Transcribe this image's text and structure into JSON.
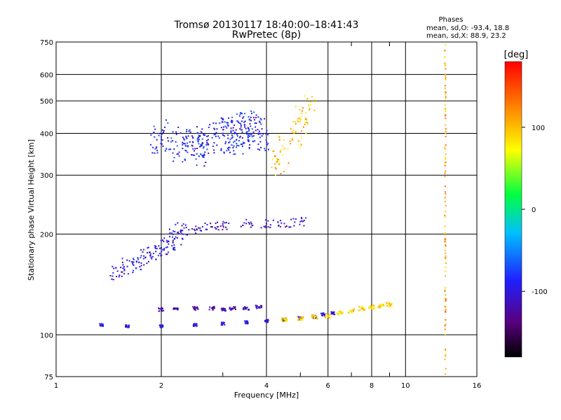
{
  "chart_data": {
    "type": "scatter",
    "title": "Tromsø 20130117 18:40:00–18:41:43",
    "subtitle": "RwPretec (8p)",
    "xlabel": "Frequency [MHz]",
    "ylabel": "Stationary phase Virtual Height [km]",
    "x_scale": "log",
    "y_scale": "log",
    "xlim": [
      1,
      16
    ],
    "ylim": [
      75,
      750
    ],
    "x_ticks": [
      1,
      2,
      4,
      6,
      8,
      10,
      16
    ],
    "x_minor_ticks": [
      7,
      9
    ],
    "y_ticks": [
      75,
      100,
      200,
      300,
      400,
      500,
      600,
      750
    ],
    "grid": true,
    "stats": {
      "heading": "Phases",
      "line1": "mean, sd,O:  -93.4, 18.8",
      "line2": "mean, sd,X:  88.9, 23.2"
    },
    "colorbar": {
      "label": "[deg]",
      "range": [
        -180,
        180
      ],
      "ticks": [
        100,
        0,
        -100
      ],
      "tick_labels": [
        "100",
        "0",
        "-100"
      ],
      "colormap": "rainbow (black-purple-blue-cyan-green-yellow-red)"
    },
    "color_key": "phase_deg",
    "traces": [
      {
        "kind": "o-trace",
        "x": [
          1.35,
          1.6,
          2.0,
          2.5,
          3.0,
          3.5,
          4.0,
          4.5,
          5.0,
          5.5,
          5.8,
          6.2
        ],
        "y": [
          107,
          106,
          106,
          107,
          108,
          109,
          110,
          111,
          112,
          113,
          115,
          116
        ],
        "phase_deg": -100
      },
      {
        "kind": "x-trace",
        "x": [
          4.5,
          5.0,
          5.5,
          6.0,
          6.5,
          7.0,
          7.5,
          8.0,
          8.5,
          9.0
        ],
        "y": [
          111,
          112,
          113,
          114,
          116,
          118,
          120,
          121,
          122,
          123
        ],
        "phase_deg": 90
      },
      {
        "kind": "ledge-120",
        "x": [
          2.0,
          2.2,
          2.5,
          2.8,
          3.0,
          3.2,
          3.5,
          3.8
        ],
        "y": [
          119,
          120,
          120,
          120,
          119,
          120,
          120,
          121
        ],
        "phase_deg": -120
      },
      {
        "kind": "cusp",
        "x": [
          1.5,
          1.6,
          1.7,
          1.8,
          1.9,
          2.0,
          2.1,
          2.2,
          2.3
        ],
        "y": [
          155,
          160,
          165,
          170,
          175,
          182,
          190,
          196,
          205
        ],
        "phase_deg": -100
      },
      {
        "kind": "f1-layer",
        "x": [
          2.5,
          2.8,
          3.0,
          3.5,
          4.0,
          4.5,
          5.0
        ],
        "y": [
          205,
          210,
          212,
          215,
          215,
          215,
          218
        ],
        "phase_deg": -110
      },
      {
        "kind": "f2-cloud",
        "x": [
          2.0,
          2.3,
          2.5,
          2.7,
          3.0,
          3.2,
          3.4,
          3.6,
          3.8
        ],
        "y": [
          390,
          370,
          360,
          380,
          400,
          390,
          410,
          420,
          400
        ],
        "phase_deg": -90
      },
      {
        "kind": "f2-x",
        "x": [
          4.3,
          4.5,
          4.8,
          5.0,
          5.3
        ],
        "y": [
          330,
          360,
          400,
          440,
          470
        ],
        "phase_deg": 100
      },
      {
        "kind": "line-13MHz",
        "x": [
          13.0,
          13.0,
          13.0,
          13.0,
          13.0
        ],
        "y": [
          90,
          150,
          250,
          400,
          600
        ],
        "phase_deg": 110
      }
    ]
  }
}
